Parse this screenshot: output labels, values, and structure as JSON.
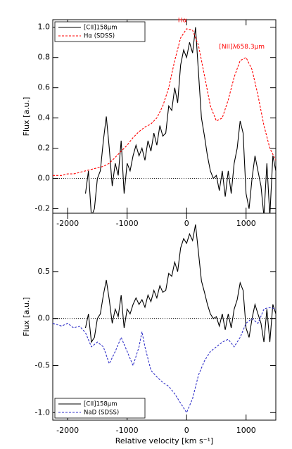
{
  "chart_data": [
    {
      "type": "line",
      "ylabel": "Flux [a.u.]",
      "xlim": [
        -2250,
        1500
      ],
      "ylim": [
        -0.23,
        1.05
      ],
      "xticks": [
        -2000,
        -1000,
        0,
        1000
      ],
      "yticks": [
        -0.2,
        0.0,
        0.2,
        0.4,
        0.6,
        0.8,
        1.0
      ],
      "reference_line": 0,
      "legend": "upper left",
      "annotations": [
        "Hα",
        "[NII]λ658.3μm"
      ],
      "annotation_color": "#ff0000",
      "series": [
        {
          "name": "[CII]158μm",
          "color": "#000000",
          "linestyle": "solid",
          "x": [
            -1700,
            -1650,
            -1600,
            -1550,
            -1500,
            -1450,
            -1400,
            -1350,
            -1300,
            -1250,
            -1200,
            -1150,
            -1100,
            -1050,
            -1000,
            -950,
            -900,
            -850,
            -800,
            -750,
            -700,
            -650,
            -600,
            -550,
            -500,
            -450,
            -400,
            -350,
            -300,
            -250,
            -200,
            -150,
            -100,
            -50,
            0,
            50,
            100,
            150,
            200,
            250,
            300,
            350,
            400,
            450,
            500,
            550,
            600,
            650,
            700,
            750,
            800,
            850,
            900,
            950,
            1000,
            1050,
            1100,
            1150,
            1200,
            1250,
            1300,
            1350,
            1400,
            1450,
            1500
          ],
          "values": [
            -0.1,
            0.05,
            -0.25,
            -0.2,
            0.0,
            0.05,
            0.25,
            0.41,
            0.2,
            -0.05,
            0.1,
            0.02,
            0.25,
            -0.1,
            0.1,
            0.05,
            0.15,
            0.22,
            0.15,
            0.2,
            0.12,
            0.25,
            0.18,
            0.3,
            0.22,
            0.35,
            0.28,
            0.3,
            0.48,
            0.45,
            0.6,
            0.5,
            0.75,
            0.85,
            0.8,
            0.9,
            0.83,
            1.0,
            0.7,
            0.4,
            0.28,
            0.15,
            0.05,
            0.0,
            0.02,
            -0.08,
            0.05,
            -0.12,
            0.05,
            -0.1,
            0.1,
            0.2,
            0.38,
            0.3,
            -0.1,
            -0.2,
            0.0,
            0.15,
            0.05,
            -0.05,
            -0.25,
            0.1,
            -0.25,
            0.15,
            0.05
          ]
        },
        {
          "name": "Hα (SDSS)",
          "color": "#ff0000",
          "linestyle": "dashed",
          "x": [
            -2250,
            -2100,
            -2000,
            -1900,
            -1800,
            -1700,
            -1600,
            -1500,
            -1400,
            -1300,
            -1200,
            -1100,
            -1000,
            -900,
            -800,
            -700,
            -600,
            -500,
            -400,
            -300,
            -200,
            -100,
            0,
            100,
            200,
            300,
            400,
            500,
            600,
            700,
            800,
            900,
            1000,
            1100,
            1200,
            1300,
            1400,
            1500
          ],
          "values": [
            0.02,
            0.02,
            0.03,
            0.03,
            0.04,
            0.05,
            0.06,
            0.07,
            0.08,
            0.1,
            0.14,
            0.18,
            0.22,
            0.27,
            0.31,
            0.34,
            0.36,
            0.4,
            0.48,
            0.6,
            0.78,
            0.93,
            0.99,
            0.98,
            0.88,
            0.68,
            0.48,
            0.38,
            0.4,
            0.52,
            0.67,
            0.78,
            0.8,
            0.72,
            0.55,
            0.35,
            0.2,
            0.12
          ]
        }
      ]
    },
    {
      "type": "line",
      "ylabel": "Flux [a.u.]",
      "xlabel": "Relative velocity [km s⁻¹]",
      "xlim": [
        -2250,
        1500
      ],
      "ylim": [
        -1.08,
        1.12
      ],
      "xticks": [
        -2000,
        -1000,
        0,
        1000
      ],
      "yticks": [
        -1.0,
        -0.5,
        0.0,
        0.5
      ],
      "reference_line": 0,
      "legend": "lower left",
      "series": [
        {
          "name": "[CII]158μm",
          "color": "#000000",
          "linestyle": "solid",
          "x": [
            -1700,
            -1650,
            -1600,
            -1550,
            -1500,
            -1450,
            -1400,
            -1350,
            -1300,
            -1250,
            -1200,
            -1150,
            -1100,
            -1050,
            -1000,
            -950,
            -900,
            -850,
            -800,
            -750,
            -700,
            -650,
            -600,
            -550,
            -500,
            -450,
            -400,
            -350,
            -300,
            -250,
            -200,
            -150,
            -100,
            -50,
            0,
            50,
            100,
            150,
            200,
            250,
            300,
            350,
            400,
            450,
            500,
            550,
            600,
            650,
            700,
            750,
            800,
            850,
            900,
            950,
            1000,
            1050,
            1100,
            1150,
            1200,
            1250,
            1300,
            1350,
            1400,
            1450,
            1500
          ],
          "values": [
            -0.1,
            0.05,
            -0.25,
            -0.2,
            0.0,
            0.05,
            0.25,
            0.41,
            0.2,
            -0.05,
            0.1,
            0.02,
            0.25,
            -0.1,
            0.1,
            0.05,
            0.15,
            0.22,
            0.15,
            0.2,
            0.12,
            0.25,
            0.18,
            0.3,
            0.22,
            0.35,
            0.28,
            0.3,
            0.48,
            0.45,
            0.6,
            0.5,
            0.75,
            0.85,
            0.8,
            0.9,
            0.83,
            1.0,
            0.7,
            0.4,
            0.28,
            0.15,
            0.05,
            0.0,
            0.02,
            -0.08,
            0.05,
            -0.12,
            0.05,
            -0.1,
            0.1,
            0.2,
            0.38,
            0.3,
            -0.1,
            -0.2,
            0.0,
            0.15,
            0.05,
            -0.05,
            -0.25,
            0.1,
            -0.25,
            0.15,
            0.05
          ]
        },
        {
          "name": "NaD (SDSS)",
          "color": "#3030c8",
          "linestyle": "dashed",
          "x": [
            -2250,
            -2100,
            -2000,
            -1900,
            -1800,
            -1700,
            -1600,
            -1500,
            -1400,
            -1300,
            -1200,
            -1100,
            -1000,
            -900,
            -800,
            -750,
            -700,
            -600,
            -500,
            -400,
            -300,
            -200,
            -100,
            0,
            100,
            200,
            300,
            400,
            500,
            600,
            700,
            800,
            900,
            1000,
            1100,
            1200,
            1300,
            1400,
            1500
          ],
          "values": [
            -0.05,
            -0.08,
            -0.05,
            -0.1,
            -0.08,
            -0.15,
            -0.3,
            -0.25,
            -0.3,
            -0.48,
            -0.35,
            -0.2,
            -0.35,
            -0.5,
            -0.3,
            -0.14,
            -0.3,
            -0.55,
            -0.62,
            -0.68,
            -0.72,
            -0.8,
            -0.9,
            -1.0,
            -0.85,
            -0.6,
            -0.45,
            -0.35,
            -0.3,
            -0.25,
            -0.22,
            -0.3,
            -0.2,
            -0.05,
            0.0,
            -0.05,
            0.1,
            0.12,
            0.1
          ]
        }
      ]
    }
  ]
}
